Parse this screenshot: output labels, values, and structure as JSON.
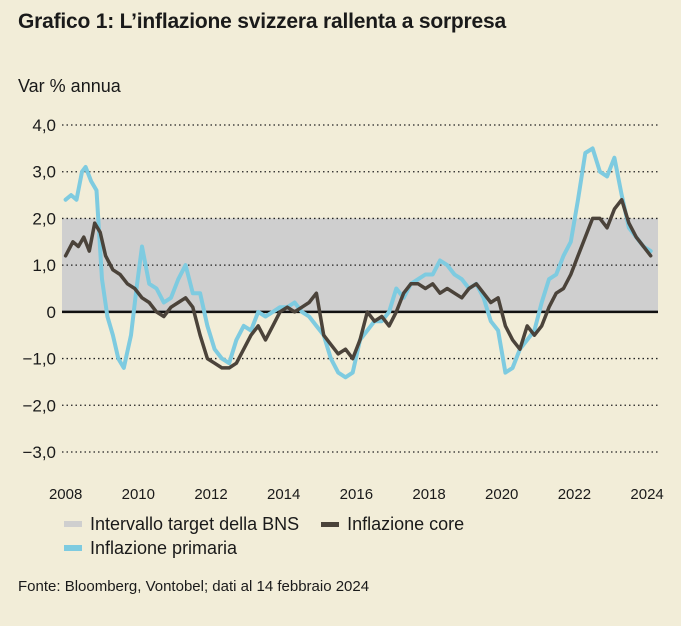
{
  "title": "Grafico 1: L’inflazione svizzera rallenta a sorpresa",
  "source": "Fonte: Bloomberg, Vontobel; dati al 14 febbraio 2024",
  "colors": {
    "background": "#f2edd8",
    "band": "#cfcfcf",
    "core": "#4b433a",
    "headline": "#7ecbe0",
    "zero": "#111111",
    "grid": "#222222"
  },
  "chart_data": {
    "type": "line",
    "title": "Grafico 1: L’inflazione svizzera rallenta a sorpresa",
    "ylabel": "Var % annua",
    "xlabel": "",
    "ylim": [
      -3,
      4
    ],
    "xlim": [
      2007.9,
      2024.3
    ],
    "y_ticks": [
      4,
      3,
      2,
      1,
      0,
      -1,
      -2,
      -3
    ],
    "y_tick_labels": [
      "4,0",
      "3,0",
      "2,0",
      "1,0",
      "0",
      "−1,0",
      "−2,0",
      "−3,0"
    ],
    "x_ticks": [
      2008,
      2010,
      2012,
      2014,
      2016,
      2018,
      2020,
      2022,
      2024
    ],
    "x_tick_labels": [
      "2008",
      "2010",
      "2012",
      "2014",
      "2016",
      "2018",
      "2020",
      "2022",
      "2024"
    ],
    "band": {
      "name": "Intervallo target della BNS",
      "from": 0,
      "to": 2
    },
    "legend": [
      {
        "name": "Intervallo target della BNS",
        "key": "band"
      },
      {
        "name": "Inflazione core",
        "key": "core"
      },
      {
        "name": "Inflazione primaria",
        "key": "headline"
      }
    ],
    "series": [
      {
        "name": "Inflazione core",
        "key": "core",
        "x": [
          2008.0,
          2008.2,
          2008.35,
          2008.5,
          2008.65,
          2008.8,
          2008.95,
          2009.1,
          2009.3,
          2009.5,
          2009.7,
          2009.9,
          2010.1,
          2010.3,
          2010.5,
          2010.7,
          2010.9,
          2011.1,
          2011.3,
          2011.5,
          2011.7,
          2011.9,
          2012.1,
          2012.3,
          2012.5,
          2012.7,
          2012.9,
          2013.1,
          2013.3,
          2013.5,
          2013.7,
          2013.9,
          2014.1,
          2014.3,
          2014.5,
          2014.7,
          2014.9,
          2015.1,
          2015.3,
          2015.5,
          2015.7,
          2015.9,
          2016.1,
          2016.3,
          2016.5,
          2016.7,
          2016.9,
          2017.1,
          2017.3,
          2017.5,
          2017.7,
          2017.9,
          2018.1,
          2018.3,
          2018.5,
          2018.7,
          2018.9,
          2019.1,
          2019.3,
          2019.5,
          2019.7,
          2019.9,
          2020.1,
          2020.3,
          2020.5,
          2020.7,
          2020.9,
          2021.1,
          2021.3,
          2021.5,
          2021.7,
          2021.9,
          2022.1,
          2022.3,
          2022.5,
          2022.7,
          2022.9,
          2023.1,
          2023.3,
          2023.5,
          2023.7,
          2023.9,
          2024.1
        ],
        "values": [
          1.2,
          1.5,
          1.4,
          1.6,
          1.3,
          1.9,
          1.7,
          1.2,
          0.9,
          0.8,
          0.6,
          0.5,
          0.3,
          0.2,
          0.0,
          -0.1,
          0.1,
          0.2,
          0.3,
          0.1,
          -0.5,
          -1.0,
          -1.1,
          -1.2,
          -1.2,
          -1.1,
          -0.8,
          -0.5,
          -0.3,
          -0.6,
          -0.3,
          0.0,
          0.1,
          0.0,
          0.1,
          0.2,
          0.4,
          -0.5,
          -0.7,
          -0.9,
          -0.8,
          -1.0,
          -0.6,
          0.0,
          -0.2,
          -0.1,
          -0.3,
          0.0,
          0.4,
          0.6,
          0.6,
          0.5,
          0.6,
          0.4,
          0.5,
          0.4,
          0.3,
          0.5,
          0.6,
          0.4,
          0.2,
          0.3,
          -0.3,
          -0.6,
          -0.8,
          -0.3,
          -0.5,
          -0.3,
          0.1,
          0.4,
          0.5,
          0.8,
          1.2,
          1.6,
          2.0,
          2.0,
          1.8,
          2.2,
          2.4,
          1.9,
          1.6,
          1.4,
          1.2
        ]
      },
      {
        "name": "Inflazione primaria",
        "key": "headline",
        "x": [
          2008.0,
          2008.15,
          2008.3,
          2008.45,
          2008.55,
          2008.7,
          2008.85,
          2009.0,
          2009.15,
          2009.3,
          2009.45,
          2009.6,
          2009.8,
          2009.95,
          2010.1,
          2010.3,
          2010.5,
          2010.7,
          2010.9,
          2011.1,
          2011.3,
          2011.5,
          2011.7,
          2011.9,
          2012.1,
          2012.3,
          2012.5,
          2012.7,
          2012.9,
          2013.1,
          2013.3,
          2013.5,
          2013.7,
          2013.9,
          2014.1,
          2014.3,
          2014.5,
          2014.7,
          2014.9,
          2015.1,
          2015.3,
          2015.5,
          2015.7,
          2015.9,
          2016.1,
          2016.3,
          2016.5,
          2016.7,
          2016.9,
          2017.1,
          2017.3,
          2017.5,
          2017.7,
          2017.9,
          2018.1,
          2018.3,
          2018.5,
          2018.7,
          2018.9,
          2019.1,
          2019.3,
          2019.5,
          2019.7,
          2019.9,
          2020.1,
          2020.3,
          2020.5,
          2020.7,
          2020.9,
          2021.1,
          2021.3,
          2021.5,
          2021.7,
          2021.9,
          2022.1,
          2022.3,
          2022.5,
          2022.7,
          2022.9,
          2023.1,
          2023.3,
          2023.5,
          2023.7,
          2023.9,
          2024.1
        ],
        "values": [
          2.4,
          2.5,
          2.4,
          3.0,
          3.1,
          2.8,
          2.6,
          0.7,
          -0.1,
          -0.5,
          -1.0,
          -1.2,
          -0.5,
          0.5,
          1.4,
          0.6,
          0.5,
          0.2,
          0.3,
          0.7,
          1.0,
          0.4,
          0.4,
          -0.3,
          -0.8,
          -1.0,
          -1.1,
          -0.6,
          -0.3,
          -0.4,
          0.0,
          -0.1,
          0.0,
          0.1,
          0.1,
          0.2,
          0.0,
          -0.1,
          -0.3,
          -0.5,
          -1.0,
          -1.3,
          -1.4,
          -1.3,
          -0.6,
          -0.4,
          -0.2,
          -0.2,
          0.0,
          0.5,
          0.3,
          0.6,
          0.7,
          0.8,
          0.8,
          1.1,
          1.0,
          0.8,
          0.7,
          0.5,
          0.6,
          0.3,
          -0.2,
          -0.4,
          -1.3,
          -1.2,
          -0.8,
          -0.6,
          -0.4,
          0.2,
          0.7,
          0.8,
          1.2,
          1.5,
          2.4,
          3.4,
          3.5,
          3.0,
          2.9,
          3.3,
          2.5,
          1.8,
          1.6,
          1.4,
          1.3
        ]
      }
    ]
  }
}
